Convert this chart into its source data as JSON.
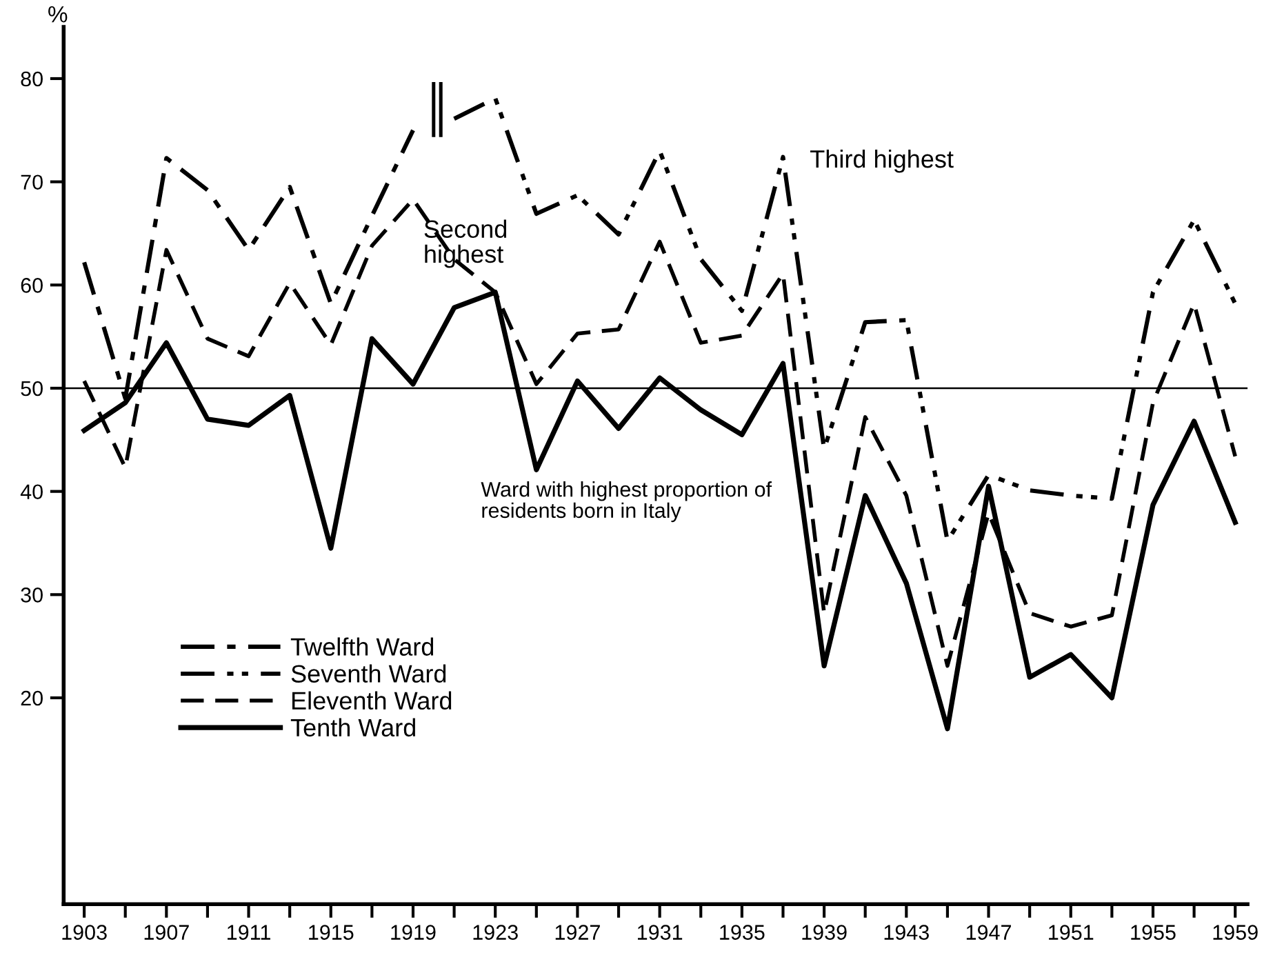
{
  "chart_data": {
    "type": "line",
    "ylabel": "%",
    "x": [
      1903,
      1905,
      1907,
      1909,
      1911,
      1913,
      1915,
      1917,
      1919,
      1921,
      1923,
      1925,
      1927,
      1929,
      1931,
      1933,
      1935,
      1937,
      1939,
      1941,
      1943,
      1945,
      1947,
      1949,
      1951,
      1953,
      1955,
      1957,
      1959
    ],
    "series": [
      {
        "name": "Twelfth Ward",
        "color": "#000000",
        "line_style": "dashdot",
        "values": [
          62.2,
          49.0,
          72.3,
          69.2,
          63.4,
          69.5,
          58.2,
          66.7,
          75.0,
          null,
          null,
          null,
          null,
          null,
          null,
          null,
          null,
          null,
          null,
          null,
          null,
          null,
          null,
          null,
          null,
          null,
          null,
          null,
          null
        ]
      },
      {
        "name": "Seventh Ward",
        "color": "#000000",
        "line_style": "dashdotdot",
        "values": [
          null,
          null,
          null,
          null,
          null,
          null,
          null,
          null,
          null,
          76.1,
          78.1,
          66.9,
          68.7,
          64.9,
          73.0,
          62.5,
          57.5,
          72.4,
          44.1,
          56.4,
          56.6,
          35.2,
          41.6,
          40.1,
          39.6,
          39.3,
          59.3,
          66.3,
          58.2
        ]
      },
      {
        "name": "Eleventh Ward",
        "color": "#000000",
        "line_style": "dashed",
        "values": [
          50.7,
          42.3,
          63.4,
          54.8,
          53.1,
          60.2,
          54.2,
          63.8,
          68.3,
          62.5,
          59.3,
          50.4,
          55.3,
          55.7,
          64.2,
          54.4,
          55.1,
          61.1,
          28.2,
          47.2,
          39.6,
          23.1,
          37.9,
          28.2,
          26.9,
          28.0,
          48.6,
          58.2,
          43.4
        ]
      },
      {
        "name": "Tenth Ward",
        "color": "#000000",
        "line_style": "solid",
        "values": [
          45.9,
          48.6,
          54.4,
          47.0,
          46.4,
          49.3,
          34.5,
          54.8,
          50.4,
          57.8,
          59.3,
          42.1,
          50.7,
          46.1,
          51.0,
          47.9,
          45.5,
          52.4,
          23.1,
          39.6,
          31.1,
          17.0,
          40.5,
          22.0,
          24.2,
          20.0,
          38.7,
          46.8,
          37.0
        ]
      }
    ],
    "annotations": [
      "Third highest",
      "Second\nhighest",
      "Ward with highest proportion of\nresidents born in Italy"
    ],
    "ref_lines": [
      {
        "axis": "y",
        "value": 50,
        "color": "#000000",
        "line_style": "solid"
      }
    ],
    "xlim": [
      1902,
      1959.6
    ],
    "xticks": [
      1903,
      {
        "value": 1905,
        "label": null
      },
      1907,
      {
        "value": 1909,
        "label": null
      },
      1911,
      {
        "value": 1913,
        "label": null
      },
      1915,
      {
        "value": 1917,
        "label": null
      },
      1919,
      {
        "value": 1921,
        "label": null
      },
      1923,
      {
        "value": 1925,
        "label": null
      },
      1927,
      {
        "value": 1929,
        "label": null
      },
      1931,
      {
        "value": 1933,
        "label": null
      },
      1935,
      {
        "value": 1937,
        "label": null
      },
      1939,
      {
        "value": 1941,
        "label": null
      },
      1943,
      {
        "value": 1945,
        "label": null
      },
      1947,
      {
        "value": 1949,
        "label": null
      },
      1951,
      {
        "value": 1953,
        "label": null
      },
      1955,
      {
        "value": 1957,
        "label": null
      },
      1959
    ],
    "ylim": [
      0,
      85
    ],
    "yticks": [
      20,
      30,
      40,
      50,
      60,
      70,
      80
    ],
    "grid": false,
    "legend": "bottom left"
  }
}
